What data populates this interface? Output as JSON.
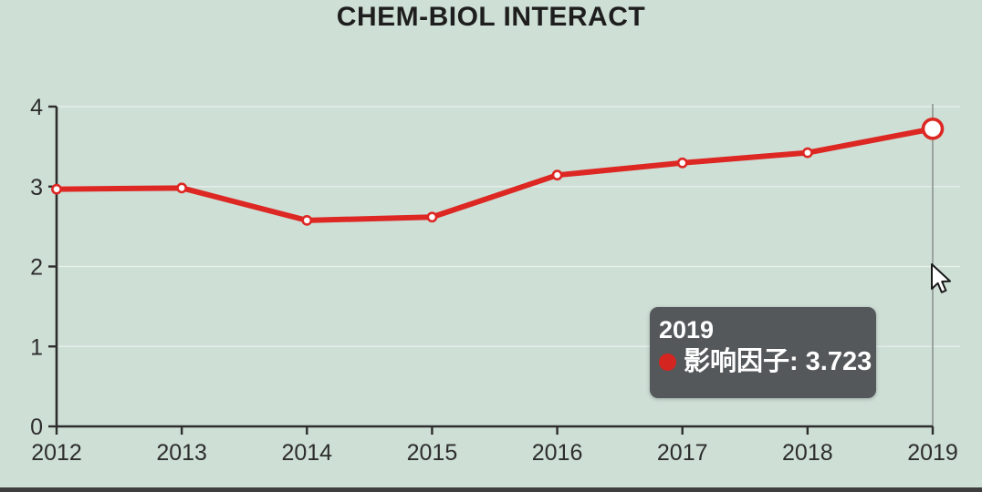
{
  "title": "CHEM-BIOL INTERACT",
  "chart_data": {
    "type": "line",
    "title": "CHEM-BIOL INTERACT",
    "x": [
      2012,
      2013,
      2014,
      2015,
      2016,
      2017,
      2018,
      2019
    ],
    "series": [
      {
        "name": "影响因子",
        "values": [
          2.967,
          2.982,
          2.577,
          2.618,
          3.143,
          3.296,
          3.423,
          3.723
        ]
      }
    ],
    "xlabel": "",
    "ylabel": "",
    "ylim": [
      0,
      4
    ],
    "yticks": [
      0,
      1,
      2,
      3,
      4
    ],
    "grid": "faint horizontal gridlines at 1,2,3,4",
    "legend_position": "none",
    "marker_style": "open-circle",
    "highlighted_x": 2019
  },
  "tooltip": {
    "year": "2019",
    "series_label": "影响因子:",
    "value": "3.723"
  },
  "colors": {
    "background": "#cedfd6",
    "line": "#dd2723",
    "marker_fill": "#ffffff",
    "axis": "#2d2d2d",
    "gridline": "rgba(255,255,255,0.55)",
    "crosshair": "#878e89",
    "tooltip_bg": "rgba(80,84,87,0.97)",
    "tooltip_text": "#ffffff",
    "tooltip_dot": "#d42521",
    "bottom_bar": "#3e3e3e"
  }
}
